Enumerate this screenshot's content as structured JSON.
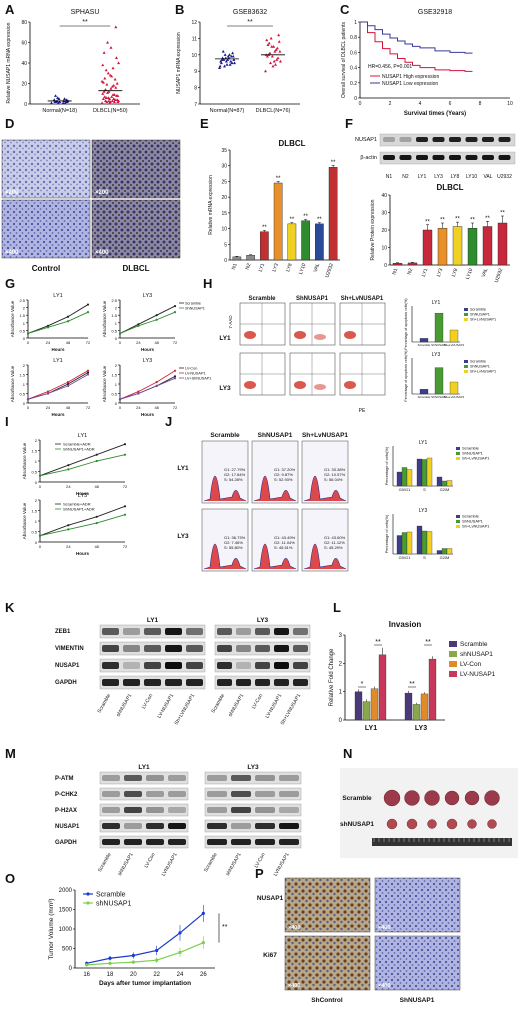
{
  "panels": {
    "A": {
      "letter": "A",
      "title": "SPHASU"
    },
    "B": {
      "letter": "B",
      "title": "GSE83632"
    },
    "C": {
      "letter": "C",
      "title": "GSE32918"
    },
    "D": {
      "letter": "D",
      "mag_top": "×200",
      "mag_bottom": "×400",
      "label_left": "Control",
      "label_right": "DLBCL"
    },
    "E": {
      "letter": "E",
      "title": "DLBCL"
    },
    "F": {
      "letter": "F",
      "title": "DLBCL",
      "blot_labels": [
        "NUSAP1",
        "β-actin"
      ],
      "lanes": [
        "N1",
        "N2",
        "LY1",
        "LY3",
        "LY8",
        "LY10",
        "VAL",
        "U2932"
      ]
    },
    "G": {
      "letter": "G"
    },
    "H": {
      "letter": "H",
      "columns": [
        "Scramble",
        "ShNUSAP1",
        "Sh+LvNUSAP1"
      ],
      "rows": [
        "LY1",
        "LY3"
      ],
      "axis_y": "7-AAD",
      "axis_x": "PE"
    },
    "I": {
      "letter": "I"
    },
    "J": {
      "letter": "J",
      "columns": [
        "Scramble",
        "ShNUSAP1",
        "Sh+LvNUSAP1"
      ],
      "rows": [
        "LY1",
        "LY3"
      ]
    },
    "K": {
      "letter": "K",
      "groups": [
        "LY1",
        "LY3"
      ],
      "blot_labels": [
        "ZEB1",
        "VIMENTIN",
        "NUSAP1",
        "GAPDH"
      ],
      "lanes": [
        "Scramble",
        "shNUSAP1",
        "LV-Con",
        "LV-NUSAP1",
        "Sh+LVNUSAP1"
      ]
    },
    "L": {
      "letter": "L",
      "title": "Invasion"
    },
    "M": {
      "letter": "M",
      "groups": [
        "LY1",
        "LY3"
      ],
      "blot_labels": [
        "P-ATM",
        "P-CHK2",
        "P-H2AX",
        "NUSAP1",
        "GAPDH"
      ],
      "lanes": [
        "Scramble",
        "shNUSAP1",
        "LV-Con",
        "LVNUSAP1"
      ]
    },
    "N": {
      "letter": "N",
      "rows": [
        "Scramble",
        "shNUSAP1"
      ]
    },
    "O": {
      "letter": "O"
    },
    "P": {
      "letter": "P",
      "rows": [
        "NUSAP1",
        "Ki67"
      ],
      "columns": [
        "ShControl",
        "ShNUSAP1"
      ],
      "mag": "×400"
    }
  },
  "colors": {
    "normal": "#1a1a8c",
    "dlbcl": "#d4143c",
    "high": "#d4143c",
    "low": "#3a3a9a",
    "bar_blue": "#3d3d8f",
    "bar_green": "#4a9a32",
    "bar_yellow": "#f0d020",
    "bar_orange": "#e8902a",
    "bar_red": "#c8283c",
    "inv_scramble": "#4a3a7a",
    "inv_shnusap1": "#8aa84a",
    "inv_lvcon": "#e08a2a",
    "inv_lvnusap1": "#c8385a",
    "o_scramble": "#1a3acc",
    "o_shnusap1": "#7ad04a"
  },
  "chart_data": [
    {
      "id": "A",
      "type": "scatter",
      "categories": [
        "Normal(N=18)",
        "DLBCL(N=50)"
      ],
      "ylabel": "Relative NUSAP1 mRNA expression",
      "ylim": [
        0,
        80
      ],
      "yticks": [
        0,
        20,
        40,
        60,
        80
      ],
      "means": [
        3,
        13
      ],
      "significance": "**",
      "points": [
        [
          1,
          2,
          3,
          5,
          2,
          1,
          4,
          6,
          2,
          3,
          1,
          2,
          5,
          8,
          3,
          2,
          1,
          4
        ],
        [
          1,
          2,
          3,
          5,
          8,
          12,
          20,
          30,
          45,
          60,
          75,
          2,
          4,
          6,
          9,
          14,
          18,
          25,
          35,
          50,
          3,
          5,
          7,
          10,
          15,
          22,
          28,
          40,
          1,
          2,
          3,
          4,
          6,
          8,
          11,
          16,
          19,
          24,
          33,
          2,
          3,
          5,
          7,
          9,
          12,
          17,
          21,
          27,
          38,
          55
        ]
      ]
    },
    {
      "id": "B",
      "type": "scatter",
      "categories": [
        "Normal(N=87)",
        "DLBCL(N=76)"
      ],
      "ylabel": "NUSAP1 mRNA expression",
      "ylim": [
        7,
        12
      ],
      "yticks": [
        7,
        8,
        9,
        10,
        11,
        12
      ],
      "means": [
        9.75,
        10.0
      ],
      "significance": "**",
      "points": [
        [
          9.2,
          9.4,
          9.5,
          9.6,
          9.7,
          9.8,
          9.9,
          10.0,
          10.1,
          9.3,
          9.5,
          9.7,
          9.9,
          10.2,
          9.6,
          9.8,
          9.4,
          9.7,
          10.0,
          9.5,
          9.8,
          9.6,
          9.9,
          9.3,
          9.7
        ],
        [
          9.0,
          9.3,
          9.6,
          9.9,
          10.2,
          10.5,
          10.8,
          11.0,
          11.2,
          9.5,
          9.8,
          10.1,
          10.4,
          10.7,
          9.7,
          10.0,
          10.3,
          10.6,
          9.4,
          9.9,
          10.2,
          10.9,
          9.6,
          10.0,
          10.5
        ]
      ]
    },
    {
      "id": "C",
      "type": "line",
      "xlabel": "Survival times (Years)",
      "ylabel": "Overall survival of DLBCL patients",
      "xlim": [
        0,
        10
      ],
      "ylim": [
        0,
        1.0
      ],
      "xticks": [
        0,
        2,
        4,
        6,
        8,
        10
      ],
      "yticks": [
        0,
        0.2,
        0.4,
        0.6,
        0.8,
        1.0
      ],
      "annotation": "HR=0.456, P=0.001",
      "series": [
        {
          "name": "NUSAP1 High expression",
          "x": [
            0,
            0.5,
            1,
            1.5,
            2,
            2.5,
            3,
            3.5,
            4,
            5,
            6,
            7,
            7.5
          ],
          "y": [
            1,
            0.86,
            0.74,
            0.65,
            0.58,
            0.52,
            0.47,
            0.43,
            0.4,
            0.37,
            0.36,
            0.35,
            0.35
          ]
        },
        {
          "name": "NUSAP1 Low expression",
          "x": [
            0,
            0.5,
            1,
            1.5,
            2,
            2.5,
            3,
            3.5,
            4,
            5,
            6,
            7,
            7.5
          ],
          "y": [
            1,
            0.95,
            0.9,
            0.84,
            0.79,
            0.75,
            0.71,
            0.68,
            0.66,
            0.62,
            0.6,
            0.59,
            0.59
          ]
        }
      ]
    },
    {
      "id": "E",
      "type": "bar",
      "categories": [
        "N1",
        "N2",
        "LY1",
        "LY3",
        "LY8",
        "LY10",
        "VAL",
        "U2932"
      ],
      "values": [
        1,
        1.5,
        9,
        24.5,
        11.5,
        12.5,
        11.5,
        29.5
      ],
      "errors": [
        0.2,
        0.2,
        0.4,
        0.5,
        0.4,
        0.4,
        0.4,
        0.6
      ],
      "sig": [
        "",
        "",
        "**",
        "**",
        "**",
        "**",
        "**",
        "**"
      ],
      "colors": [
        "#8c8c8c",
        "#8c8c8c",
        "#c03030",
        "#e8902a",
        "#f0d020",
        "#2e8b2e",
        "#2a4a9a",
        "#c03030"
      ],
      "ylabel": "Relative mRNA expression",
      "ylim": [
        0,
        35
      ],
      "yticks": [
        0,
        5,
        10,
        15,
        20,
        25,
        30,
        35
      ]
    },
    {
      "id": "F",
      "type": "bar",
      "categories": [
        "N1",
        "N2",
        "LY1",
        "LY3",
        "LY8",
        "LY10",
        "VAL",
        "U2932"
      ],
      "values": [
        1,
        1.2,
        20,
        21,
        22,
        21,
        22,
        24
      ],
      "errors": [
        0.3,
        0.3,
        3,
        3,
        2.5,
        3,
        3,
        4
      ],
      "sig": [
        "",
        "",
        "**",
        "**",
        "**",
        "**",
        "**",
        "**"
      ],
      "colors": [
        "#c8283c",
        "#c8283c",
        "#c8283c",
        "#e8902a",
        "#f0d020",
        "#2e8b2e",
        "#c8283c",
        "#c8283c"
      ],
      "ylabel": "Relative Protein expression",
      "ylim": [
        0,
        40
      ],
      "yticks": [
        0,
        10,
        20,
        30,
        40
      ]
    },
    {
      "id": "G1",
      "type": "line",
      "title": "LY1",
      "xlabel": "Hours",
      "ylabel": "Absorbance Value",
      "x": [
        0,
        24,
        48,
        72
      ],
      "xlim": [
        0,
        72
      ],
      "ylim": [
        0,
        2.5
      ],
      "yticks": [
        0,
        0.5,
        1.0,
        1.5,
        2.0,
        2.5
      ],
      "series": [
        {
          "name": "Scramble",
          "y": [
            0.3,
            0.8,
            1.4,
            2.2
          ]
        },
        {
          "name": "ShNUSAP1",
          "y": [
            0.3,
            0.7,
            1.1,
            1.7
          ]
        }
      ]
    },
    {
      "id": "G2",
      "type": "line",
      "title": "LY3",
      "xlabel": "Hours",
      "ylabel": "Absorbance Value",
      "x": [
        0,
        24,
        48,
        72
      ],
      "xlim": [
        0,
        72
      ],
      "ylim": [
        0,
        2.5
      ],
      "yticks": [
        0,
        0.5,
        1.0,
        1.5,
        2.0,
        2.5
      ],
      "series": [
        {
          "name": "Scramble",
          "y": [
            0.3,
            0.9,
            1.5,
            2.1
          ]
        },
        {
          "name": "ShNUSAP1",
          "y": [
            0.3,
            0.8,
            1.2,
            1.7
          ]
        }
      ]
    },
    {
      "id": "G3",
      "type": "line",
      "title": "LY1",
      "xlabel": "Hours",
      "ylabel": "Absorbance Value",
      "x": [
        0,
        24,
        48,
        72
      ],
      "xlim": [
        0,
        72
      ],
      "ylim": [
        0,
        2.0
      ],
      "yticks": [
        0,
        0.5,
        1.0,
        1.5,
        2.0
      ],
      "series": [
        {
          "name": "LV-Con",
          "y": [
            0.2,
            0.5,
            1.0,
            1.6
          ]
        },
        {
          "name": "LV-NUSAP1",
          "y": [
            0.2,
            0.6,
            1.1,
            1.7
          ]
        },
        {
          "name": "LV+ShNUSAP1",
          "y": [
            0.2,
            0.5,
            0.9,
            1.5
          ]
        }
      ]
    },
    {
      "id": "G4",
      "type": "line",
      "title": "LY3",
      "xlabel": "Hours",
      "ylabel": "Absorbance Value",
      "x": [
        0,
        24,
        48,
        72
      ],
      "xlim": [
        0,
        72
      ],
      "ylim": [
        0,
        2.0
      ],
      "yticks": [
        0,
        0.5,
        1.0,
        1.5,
        2.0
      ],
      "series": [
        {
          "name": "LV-Con",
          "y": [
            0.2,
            0.5,
            0.9,
            1.4
          ]
        },
        {
          "name": "LV-NUSAP1",
          "y": [
            0.2,
            0.6,
            1.1,
            1.7
          ]
        },
        {
          "name": "LV+ShNUSAP1",
          "y": [
            0.2,
            0.5,
            0.9,
            1.3
          ]
        }
      ]
    },
    {
      "id": "H1",
      "type": "bar",
      "title": "LY1",
      "ylabel": "Percentage of apoptosis cells(%)",
      "categories": [
        "Scramble",
        "ShNUSAP1",
        "Sh+LvNUSAP1"
      ],
      "values": [
        1.5,
        12,
        5
      ],
      "errors": [
        0.3,
        1.0,
        0.8
      ],
      "colors": [
        "#3d3d8f",
        "#4a9a32",
        "#f0d020"
      ],
      "ylim": [
        0,
        15
      ]
    },
    {
      "id": "H2",
      "type": "bar",
      "title": "LY3",
      "ylabel": "Percentage of apoptosis cells(%)",
      "categories": [
        "Scramble",
        "ShNUSAP1",
        "Sh+LvNUSAP1"
      ],
      "values": [
        2,
        11,
        5
      ],
      "errors": [
        0.4,
        1.2,
        0.9
      ],
      "colors": [
        "#3d3d8f",
        "#4a9a32",
        "#f0d020"
      ],
      "ylim": [
        0,
        15
      ]
    },
    {
      "id": "I1",
      "type": "line",
      "title": "LY1",
      "xlabel": "Hours",
      "ylabel": "Absorbance Value",
      "x": [
        0,
        24,
        48,
        72
      ],
      "xlim": [
        0,
        72
      ],
      "ylim": [
        0,
        2.0
      ],
      "yticks": [
        0,
        0.5,
        1.0,
        1.5,
        2.0
      ],
      "series": [
        {
          "name": "Scramble+ADR",
          "y": [
            0.3,
            0.8,
            1.3,
            1.8
          ]
        },
        {
          "name": "ShNUSAP1+ADR",
          "y": [
            0.3,
            0.6,
            1.0,
            1.3
          ]
        }
      ]
    },
    {
      "id": "I2",
      "type": "line",
      "title": "LY3",
      "xlabel": "Hours",
      "ylabel": "Absorbance Value",
      "x": [
        0,
        24,
        48,
        72
      ],
      "xlim": [
        0,
        72
      ],
      "ylim": [
        0,
        2.0
      ],
      "yticks": [
        0,
        0.5,
        1.0,
        1.5,
        2.0
      ],
      "series": [
        {
          "name": "Scramble+ADR",
          "y": [
            0.3,
            0.8,
            1.2,
            1.7
          ]
        },
        {
          "name": "ShNUSAP1+ADR",
          "y": [
            0.3,
            0.6,
            0.9,
            1.3
          ]
        }
      ]
    },
    {
      "id": "J_hist",
      "type": "table",
      "rows": [
        [
          [
            "G1: 27.79%",
            "G2: 17.84%",
            "S: 54.28%"
          ],
          [
            "G1: 37.20%",
            "G2: 9.87%",
            "S: 52.93%"
          ],
          [
            "G1: 33.38%",
            "G2: 10.57%",
            "S: 56.04%"
          ]
        ],
        [
          [
            "G1: 36.73%",
            "G2: 7.46%",
            "S: 55.80%"
          ],
          [
            "G1: 43.49%",
            "G2: 11.04%",
            "S: 45.51%"
          ],
          [
            "G1: 43.60%",
            "G2: 11.12%",
            "S: 45.29%"
          ]
        ]
      ]
    },
    {
      "id": "J1",
      "type": "bar",
      "title": "LY1",
      "ylabel": "Percentage of cells(%)",
      "categories": [
        "G0/G1",
        "S",
        "G2/M"
      ],
      "series": [
        {
          "name": "Scramble",
          "values": [
            28,
            54,
            18
          ],
          "errors": [
            1.5,
            2,
            1.5
          ]
        },
        {
          "name": "ShNUSAP1",
          "values": [
            37,
            53,
            10
          ],
          "errors": [
            1.5,
            2,
            1
          ]
        },
        {
          "name": "Sh+LvNUSAP1",
          "values": [
            33,
            56,
            11
          ],
          "errors": [
            1.5,
            2,
            1
          ]
        }
      ],
      "ylim": [
        0,
        80
      ]
    },
    {
      "id": "J2",
      "type": "bar",
      "title": "LY3",
      "ylabel": "Percentage of cells(%)",
      "categories": [
        "G0/G1",
        "S",
        "G2/M"
      ],
      "series": [
        {
          "name": "Scramble",
          "values": [
            37,
            56,
            7
          ],
          "errors": [
            1.5,
            2,
            1
          ]
        },
        {
          "name": "ShNUSAP1",
          "values": [
            43,
            46,
            11
          ],
          "errors": [
            1.5,
            2,
            1
          ]
        },
        {
          "name": "Sh+LvNUSAP1",
          "values": [
            44,
            45,
            11
          ],
          "errors": [
            1.5,
            2,
            1
          ]
        }
      ],
      "ylim": [
        0,
        80
      ]
    },
    {
      "id": "L",
      "type": "bar",
      "title": "Invasion",
      "ylabel": "Relative Fold Change",
      "categories": [
        "LY1",
        "LY3"
      ],
      "series": [
        {
          "name": "Scramble",
          "values": [
            1.0,
            0.95
          ],
          "errors": [
            0.08,
            0.08
          ]
        },
        {
          "name": "shNUSAP1",
          "values": [
            0.65,
            0.55
          ],
          "errors": [
            0.08,
            0.06
          ]
        },
        {
          "name": "LV-Con",
          "values": [
            1.1,
            0.92
          ],
          "errors": [
            0.08,
            0.06
          ]
        },
        {
          "name": "LV-NUSAP1",
          "values": [
            2.3,
            2.15
          ],
          "errors": [
            0.25,
            0.1
          ]
        }
      ],
      "ylim": [
        0,
        3
      ],
      "yticks": [
        0,
        1,
        2,
        3
      ],
      "sig": [
        "*",
        "**",
        "**",
        "**"
      ]
    },
    {
      "id": "O",
      "type": "line",
      "xlabel": "Days after tumor implantation",
      "ylabel": "Tumor Volume (mm³)",
      "x": [
        16,
        18,
        20,
        22,
        24,
        26
      ],
      "xlim": [
        15,
        27
      ],
      "ylim": [
        0,
        2000
      ],
      "yticks": [
        0,
        500,
        1000,
        1500,
        2000
      ],
      "significance": "**",
      "series": [
        {
          "name": "Scramble",
          "y": [
            120,
            250,
            320,
            450,
            900,
            1400
          ],
          "errors": [
            50,
            60,
            80,
            120,
            200,
            220
          ]
        },
        {
          "name": "shNUSAP1",
          "y": [
            80,
            120,
            150,
            200,
            400,
            650
          ],
          "errors": [
            30,
            40,
            50,
            70,
            120,
            160
          ]
        }
      ]
    }
  ]
}
